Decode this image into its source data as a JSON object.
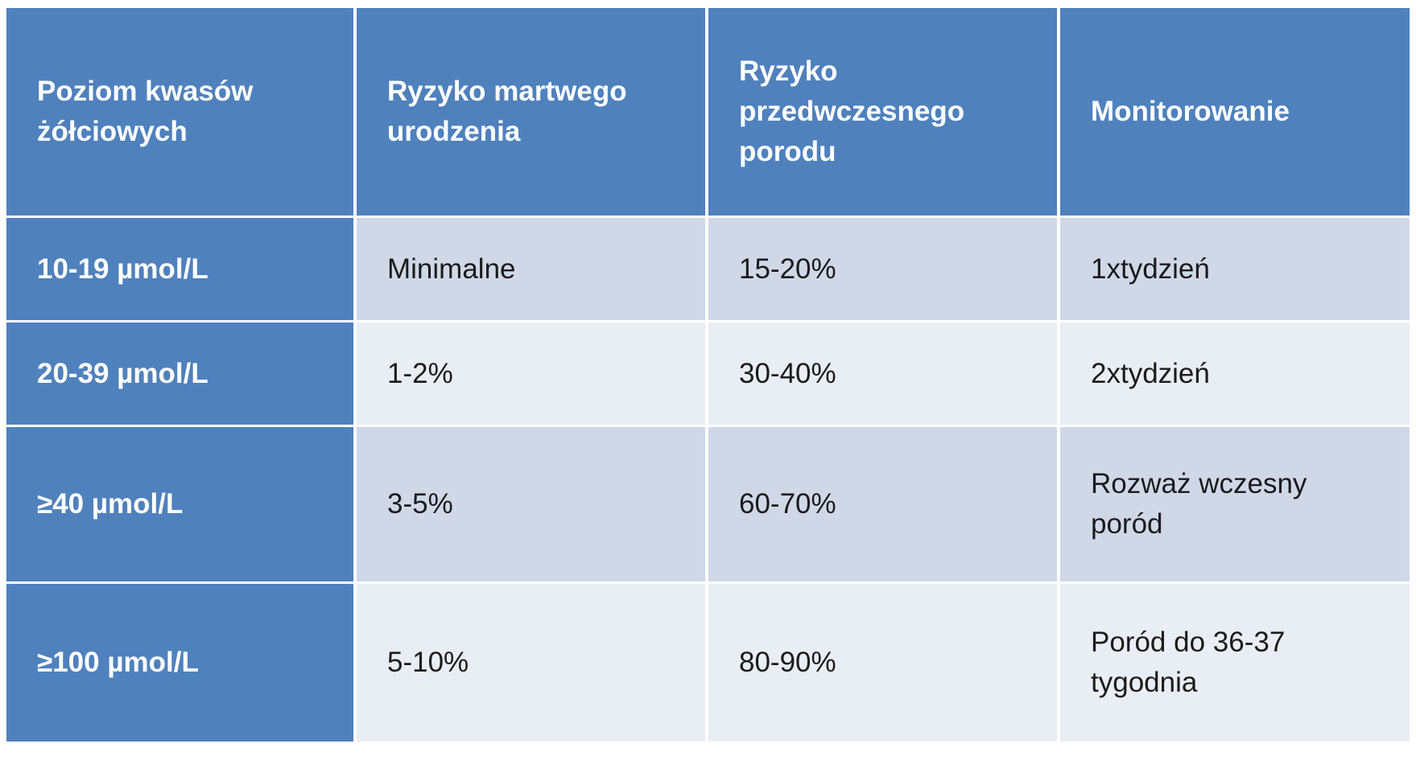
{
  "table": {
    "headers": [
      "Poziom kwasów\nżółciowych",
      "Ryzyko martwego\nurodzenia",
      "Ryzyko\nprzedwczesnego\nporodu",
      "Monitorowanie"
    ],
    "rows": [
      [
        "10-19 µmol/L",
        "Minimalne",
        "15-20%",
        "1xtydzień"
      ],
      [
        "20-39 µmol/L",
        "1-2%",
        "30-40%",
        "2xtydzień"
      ],
      [
        "≥40 µmol/L",
        "3-5%",
        "60-70%",
        "Rozważ wczesny\nporód"
      ],
      [
        "≥100 µmol/L",
        "5-10%",
        "80-90%",
        "Poród do 36-37\ntygodnia"
      ]
    ]
  },
  "colors": {
    "header_bg": "#4f81bd",
    "row_odd_bg": "#d0d8e8",
    "row_even_bg": "#e9edf4",
    "header_text": "#ffffff",
    "body_text": "#1b1b1b"
  }
}
